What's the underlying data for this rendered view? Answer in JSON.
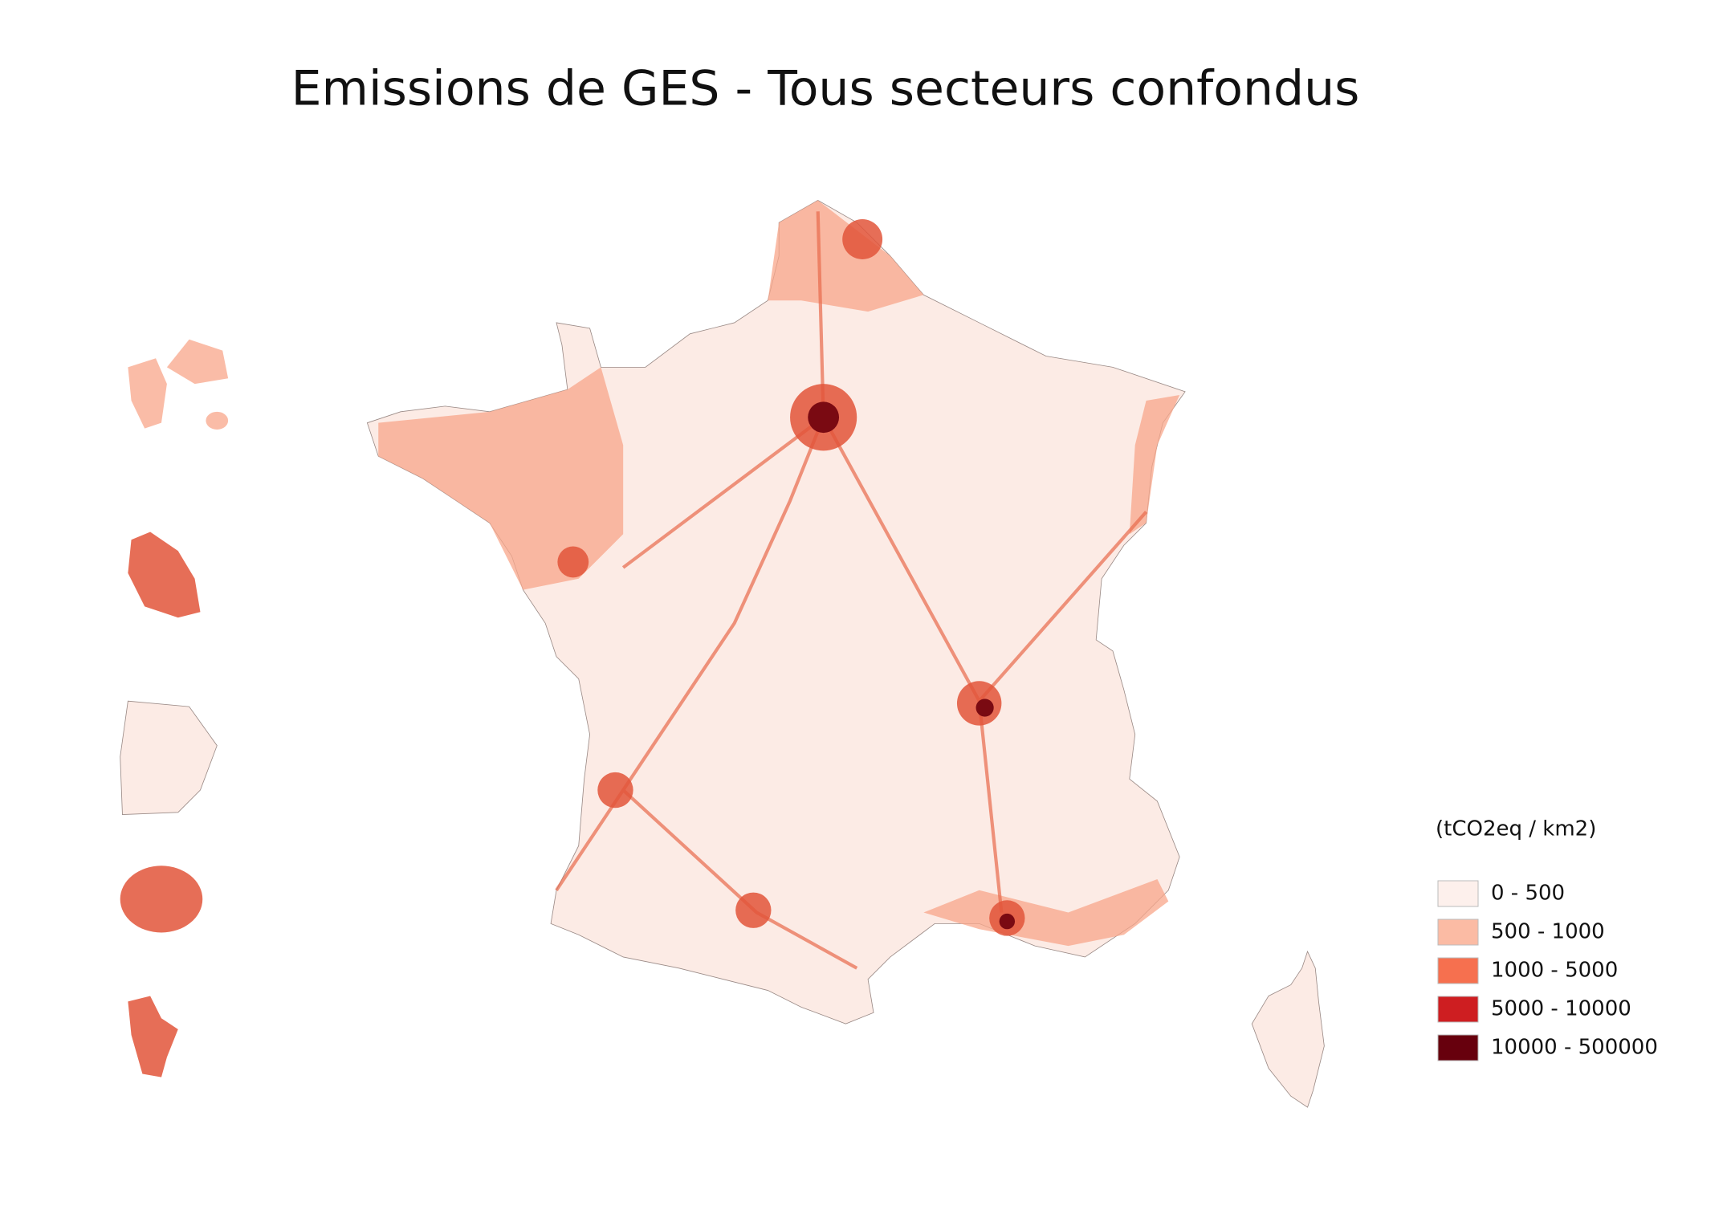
{
  "title": "Emissions de GES - Tous secteurs confondus",
  "legend": {
    "title": "(tCO2eq / km2)",
    "items": [
      {
        "label": "0 - 500",
        "color": "#fdf0ec"
      },
      {
        "label": "500 - 1000",
        "color": "#fbbba4"
      },
      {
        "label": "1000 - 5000",
        "color": "#f6704f"
      },
      {
        "label": "5000 - 10000",
        "color": "#ce1e21"
      },
      {
        "label": "10000 - 500000",
        "color": "#67000d"
      }
    ]
  }
}
